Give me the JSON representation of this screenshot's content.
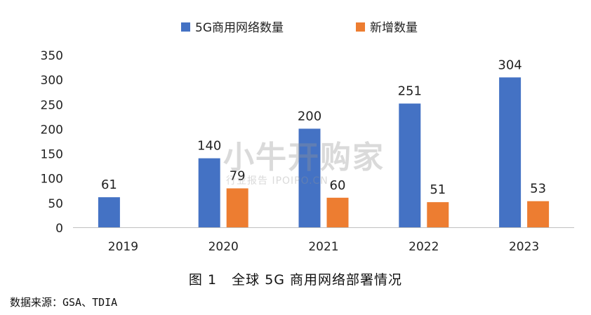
{
  "chart_data": {
    "type": "bar",
    "categories": [
      "2019",
      "2020",
      "2021",
      "2022",
      "2023"
    ],
    "series": [
      {
        "name": "5G商用网络数量",
        "values": [
          61,
          140,
          200,
          251,
          304
        ],
        "color": "#4472C4"
      },
      {
        "name": "新增数量",
        "values": [
          null,
          79,
          60,
          51,
          53
        ],
        "color": "#ED7D31"
      }
    ],
    "y_ticks": [
      0,
      50,
      100,
      150,
      200,
      250,
      300,
      350
    ],
    "ylim": [
      0,
      350
    ],
    "grid": false,
    "legend": "top-center"
  },
  "caption": "图 1   全球 5G 商用网络部署情况",
  "source": "数据来源：GSA、TDIA",
  "watermark": {
    "main": "小牛开购家",
    "sub": "行业报告 IPOIPO.CN"
  }
}
